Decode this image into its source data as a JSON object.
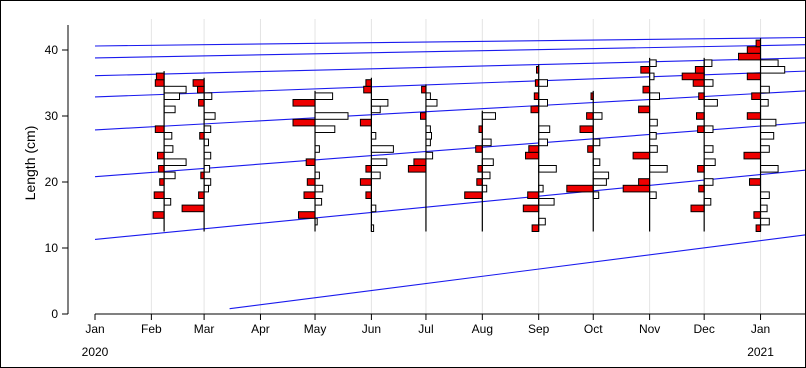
{
  "chart_data": {
    "type": "bar",
    "subtype": "length-frequency histograms with growth curves",
    "title": "",
    "xlabel": "",
    "ylabel": "Length (cm)",
    "ylim": [
      0,
      44
    ],
    "yticks": [
      0,
      10,
      20,
      30,
      40
    ],
    "x_start": "2020-01-01",
    "x_end": "2021-01-26",
    "xticks": [
      {
        "date": "2020-01-01",
        "label": "Jan"
      },
      {
        "date": "2020-02-01",
        "label": "Feb"
      },
      {
        "date": "2020-03-01",
        "label": "Mar"
      },
      {
        "date": "2020-04-01",
        "label": "Apr"
      },
      {
        "date": "2020-05-01",
        "label": "May"
      },
      {
        "date": "2020-06-01",
        "label": "Jun"
      },
      {
        "date": "2020-07-01",
        "label": "Jul"
      },
      {
        "date": "2020-08-01",
        "label": "Aug"
      },
      {
        "date": "2020-09-01",
        "label": "Sep"
      },
      {
        "date": "2020-10-01",
        "label": "Oct"
      },
      {
        "date": "2020-11-01",
        "label": "Nov"
      },
      {
        "date": "2020-12-01",
        "label": "Dec"
      },
      {
        "date": "2021-01-01",
        "label": "Jan"
      }
    ],
    "year_labels": [
      {
        "date": "2020-01-01",
        "label": "2020"
      },
      {
        "date": "2021-01-01",
        "label": "2021"
      }
    ],
    "grid": "vertical at month ticks",
    "colors": {
      "positive": "#ee0000",
      "positive_outline": "#000000",
      "open": "#ffffff",
      "curve": "#1a1aee",
      "grid": "#e4e4e4",
      "baseline": "#000000"
    },
    "samples": [
      {
        "date": "2020-02-08",
        "red": [
          [
            15,
            0.5
          ],
          [
            18,
            0.45
          ],
          [
            20,
            0.2
          ],
          [
            22,
            0.25
          ],
          [
            24,
            0.3
          ],
          [
            28,
            0.4
          ],
          [
            35,
            0.4
          ],
          [
            36,
            0.35
          ]
        ],
        "white": [
          [
            17,
            0.3
          ],
          [
            21,
            0.5
          ],
          [
            23,
            1.0
          ],
          [
            25,
            0.4
          ],
          [
            27,
            0.35
          ],
          [
            31,
            0.5
          ],
          [
            33,
            0.7
          ],
          [
            34,
            1.0
          ]
        ]
      },
      {
        "date": "2020-03-01",
        "red": [
          [
            16,
            1.0
          ],
          [
            18,
            0.25
          ],
          [
            21,
            0.15
          ],
          [
            27,
            0.2
          ],
          [
            32,
            0.25
          ],
          [
            34,
            0.3
          ],
          [
            35,
            0.5
          ]
        ],
        "white": [
          [
            19,
            0.2
          ],
          [
            20,
            0.3
          ],
          [
            22,
            0.25
          ],
          [
            24,
            0.3
          ],
          [
            26,
            0.2
          ],
          [
            28,
            0.3
          ],
          [
            30,
            0.5
          ],
          [
            33,
            0.35
          ]
        ]
      },
      {
        "date": "2020-05-01",
        "red": [
          [
            15,
            0.75
          ],
          [
            18,
            0.5
          ],
          [
            20,
            0.35
          ],
          [
            23,
            0.4
          ],
          [
            29,
            1.0
          ],
          [
            32,
            1.0
          ]
        ],
        "white": [
          [
            14,
            0.1
          ],
          [
            17,
            0.3
          ],
          [
            19,
            0.35
          ],
          [
            21,
            0.2
          ],
          [
            25,
            0.2
          ],
          [
            28,
            0.9
          ],
          [
            30,
            1.5
          ],
          [
            33,
            0.8
          ]
        ]
      },
      {
        "date": "2020-06-01",
        "red": [
          [
            18,
            0.25
          ],
          [
            20,
            0.5
          ],
          [
            22,
            0.25
          ],
          [
            29,
            0.5
          ],
          [
            34,
            0.35
          ],
          [
            35,
            0.25
          ]
        ],
        "white": [
          [
            13,
            0.1
          ],
          [
            16,
            0.2
          ],
          [
            21,
            0.4
          ],
          [
            23,
            0.7
          ],
          [
            25,
            1.0
          ],
          [
            27,
            0.2
          ],
          [
            31,
            0.4
          ],
          [
            32,
            0.75
          ]
        ]
      },
      {
        "date": "2020-07-01",
        "red": [
          [
            22,
            0.8
          ],
          [
            23,
            0.55
          ],
          [
            30,
            0.25
          ],
          [
            34,
            0.2
          ]
        ],
        "white": [
          [
            24,
            0.3
          ],
          [
            26,
            0.2
          ],
          [
            27,
            0.25
          ],
          [
            28,
            0.2
          ],
          [
            32,
            0.5
          ],
          [
            33,
            0.2
          ]
        ]
      },
      {
        "date": "2020-08-01",
        "red": [
          [
            18,
            0.8
          ],
          [
            20,
            0.25
          ],
          [
            22,
            0.2
          ],
          [
            25,
            0.3
          ],
          [
            28,
            0.15
          ]
        ],
        "white": [
          [
            19,
            0.2
          ],
          [
            21,
            0.35
          ],
          [
            23,
            0.5
          ],
          [
            26,
            0.4
          ],
          [
            30,
            0.6
          ]
        ]
      },
      {
        "date": "2020-09-01",
        "red": [
          [
            13,
            0.3
          ],
          [
            16,
            0.7
          ],
          [
            18,
            0.5
          ],
          [
            24,
            0.6
          ],
          [
            25,
            0.45
          ],
          [
            31,
            0.35
          ],
          [
            33,
            0.2
          ],
          [
            35,
            0.15
          ],
          [
            37,
            0.1
          ]
        ],
        "white": [
          [
            14,
            0.3
          ],
          [
            17,
            0.7
          ],
          [
            19,
            0.2
          ],
          [
            22,
            0.8
          ],
          [
            26,
            0.4
          ],
          [
            28,
            0.5
          ],
          [
            32,
            0.4
          ],
          [
            35,
            0.4
          ]
        ]
      },
      {
        "date": "2020-10-01",
        "red": [
          [
            19,
            1.2
          ],
          [
            25,
            0.25
          ],
          [
            28,
            0.6
          ],
          [
            30,
            0.3
          ],
          [
            33,
            0.1
          ]
        ],
        "white": [
          [
            18,
            0.25
          ],
          [
            20,
            0.6
          ],
          [
            21,
            0.7
          ],
          [
            23,
            0.3
          ],
          [
            26,
            0.3
          ],
          [
            30,
            0.4
          ]
        ]
      },
      {
        "date": "2020-11-01",
        "red": [
          [
            19,
            1.2
          ],
          [
            20,
            0.5
          ],
          [
            24,
            0.75
          ],
          [
            31,
            0.5
          ],
          [
            34,
            0.3
          ],
          [
            37,
            0.4
          ]
        ],
        "white": [
          [
            18,
            0.3
          ],
          [
            22,
            0.8
          ],
          [
            25,
            0.35
          ],
          [
            27,
            0.3
          ],
          [
            29,
            0.35
          ],
          [
            33,
            0.45
          ],
          [
            36,
            0.2
          ],
          [
            38,
            0.3
          ]
        ]
      },
      {
        "date": "2020-12-01",
        "red": [
          [
            16,
            0.6
          ],
          [
            19,
            0.25
          ],
          [
            22,
            0.3
          ],
          [
            28,
            0.3
          ],
          [
            30,
            0.35
          ],
          [
            33,
            0.25
          ],
          [
            35,
            0.5
          ],
          [
            36,
            1.0
          ],
          [
            37,
            0.4
          ]
        ],
        "white": [
          [
            17,
            0.3
          ],
          [
            20,
            0.4
          ],
          [
            23,
            0.5
          ],
          [
            25,
            0.4
          ],
          [
            28,
            0.4
          ],
          [
            32,
            0.6
          ],
          [
            35,
            0.4
          ],
          [
            38,
            0.35
          ]
        ]
      },
      {
        "date": "2021-01-01",
        "red": [
          [
            13,
            0.2
          ],
          [
            15,
            0.3
          ],
          [
            20,
            0.5
          ],
          [
            24,
            0.75
          ],
          [
            30,
            0.6
          ],
          [
            33,
            0.4
          ],
          [
            36,
            0.6
          ],
          [
            39,
            1.0
          ],
          [
            40,
            0.6
          ],
          [
            41,
            0.2
          ]
        ],
        "white": [
          [
            14,
            0.4
          ],
          [
            16,
            0.3
          ],
          [
            18,
            0.4
          ],
          [
            22,
            0.8
          ],
          [
            25,
            0.4
          ],
          [
            27,
            0.6
          ],
          [
            29,
            0.7
          ],
          [
            32,
            0.35
          ],
          [
            34,
            0.4
          ],
          [
            37,
            1.1
          ],
          [
            38,
            0.8
          ]
        ]
      }
    ],
    "growth_curves": [
      {
        "points": [
          [
            "2020-03-15",
            0.8
          ],
          [
            "2021-01-26",
            12.0
          ]
        ]
      },
      {
        "points": [
          [
            "2020-01-01",
            11.3
          ],
          [
            "2021-01-26",
            21.8
          ]
        ]
      },
      {
        "points": [
          [
            "2020-01-01",
            20.8
          ],
          [
            "2021-01-26",
            29.0
          ]
        ]
      },
      {
        "points": [
          [
            "2020-01-01",
            27.9
          ],
          [
            "2021-01-26",
            33.8
          ]
        ]
      },
      {
        "points": [
          [
            "2020-01-01",
            32.9
          ],
          [
            "2021-01-26",
            36.8
          ]
        ]
      },
      {
        "points": [
          [
            "2020-01-01",
            36.1
          ],
          [
            "2021-01-26",
            38.8
          ]
        ]
      },
      {
        "points": [
          [
            "2020-01-01",
            38.8
          ],
          [
            "2021-01-26",
            40.8
          ]
        ]
      },
      {
        "points": [
          [
            "2020-01-01",
            40.6
          ],
          [
            "2021-01-26",
            41.9
          ]
        ]
      }
    ]
  }
}
